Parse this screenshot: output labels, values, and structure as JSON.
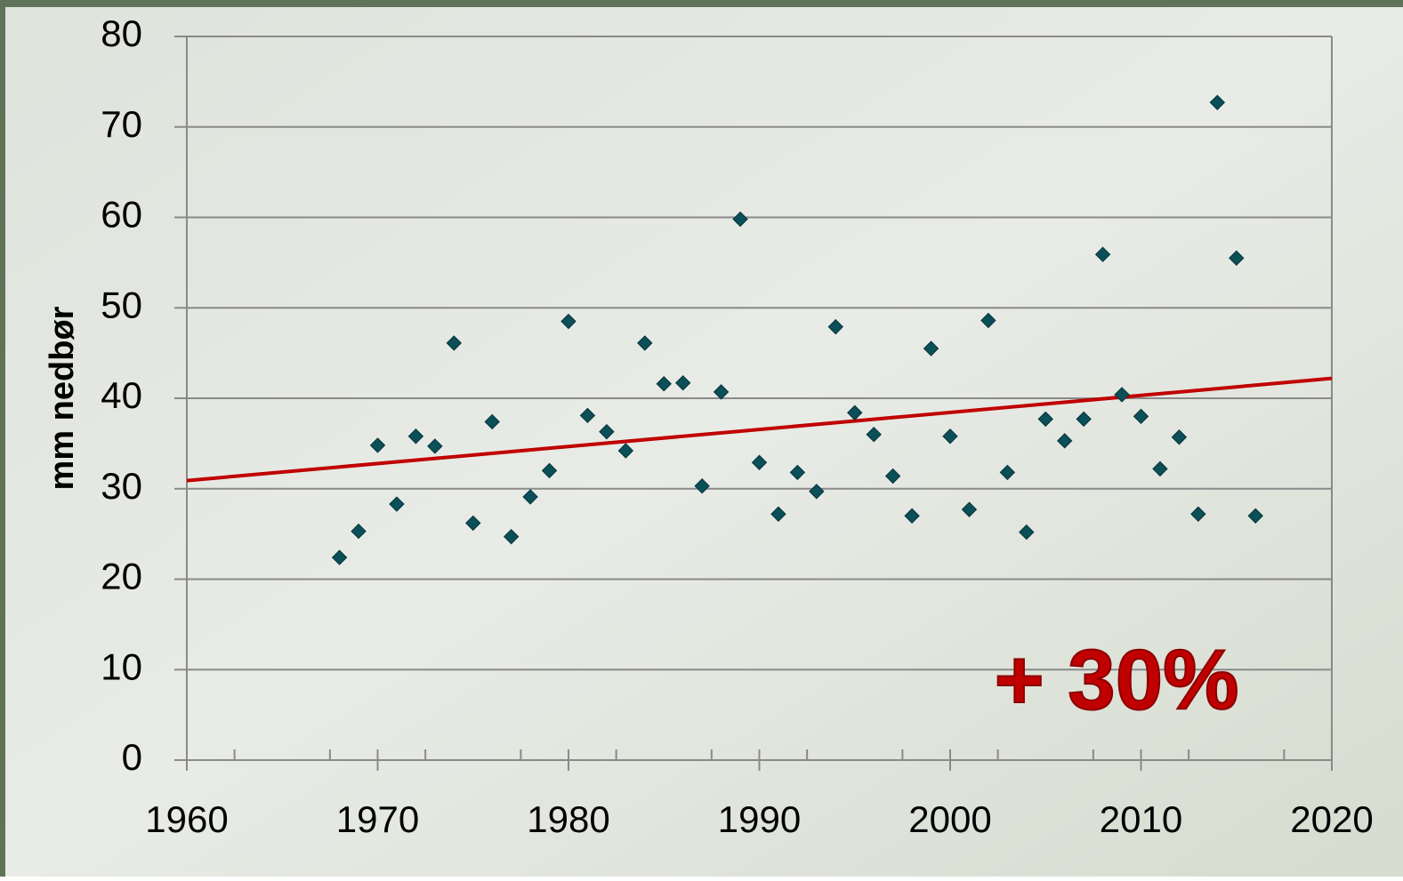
{
  "chart_data": {
    "type": "scatter",
    "y_label": "mm nedbør",
    "annotation": "+ 30%",
    "x": [
      1968,
      1969,
      1970,
      1971,
      1972,
      1973,
      1974,
      1975,
      1976,
      1977,
      1978,
      1979,
      1980,
      1981,
      1982,
      1983,
      1984,
      1985,
      1986,
      1987,
      1988,
      1989,
      1990,
      1991,
      1992,
      1993,
      1994,
      1995,
      1996,
      1997,
      1998,
      1999,
      2000,
      2001,
      2002,
      2003,
      2004,
      2005,
      2006,
      2007,
      2008,
      2009,
      2010,
      2011,
      2012,
      2013,
      2014,
      2015,
      2016
    ],
    "values": [
      22.4,
      25.3,
      34.8,
      28.3,
      35.8,
      34.7,
      46.1,
      26.2,
      37.4,
      24.7,
      29.1,
      32.0,
      48.5,
      38.1,
      36.3,
      34.2,
      46.1,
      41.6,
      41.7,
      30.3,
      40.7,
      59.8,
      32.9,
      27.2,
      31.8,
      29.7,
      47.9,
      38.4,
      36.0,
      31.4,
      27.0,
      45.5,
      35.8,
      27.7,
      48.6,
      31.8,
      25.2,
      37.7,
      35.3,
      37.7,
      55.9,
      40.4,
      38.0,
      32.2,
      35.7,
      27.2,
      72.7,
      55.5,
      27.0
    ],
    "color": "#0b4f58",
    "trendline": {
      "x": [
        1960,
        2020
      ],
      "values": [
        30.9,
        42.2
      ],
      "color": "#c00000"
    },
    "xlim": [
      1960,
      2020
    ],
    "xticks": [
      1960,
      1970,
      1980,
      1990,
      2000,
      2010,
      2020
    ],
    "ylim": [
      0,
      80
    ],
    "yticks": [
      0,
      10,
      20,
      30,
      40,
      50,
      60,
      70,
      80
    ],
    "grid": true
  }
}
